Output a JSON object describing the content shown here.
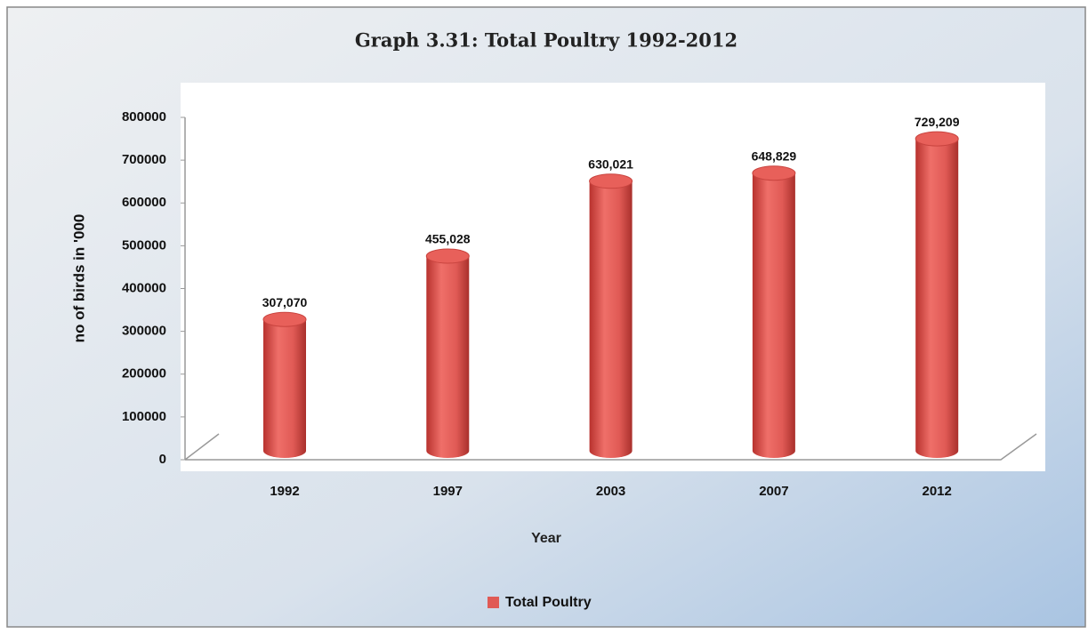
{
  "chart_data": {
    "type": "bar",
    "title": "Graph 3.31:  Total Poultry 1992-2012",
    "x_label": "Year",
    "y_label": "no of birds in '000",
    "categories": [
      "1992",
      "1997",
      "2003",
      "2007",
      "2012"
    ],
    "series": [
      {
        "name": "Total Poultry",
        "color": "#e05a55",
        "values": [
          307070,
          455028,
          630021,
          648829,
          729209
        ],
        "value_labels": [
          "307,070",
          "455,028",
          "630,021",
          "648,829",
          "729,209"
        ]
      }
    ],
    "ylim": [
      0,
      800000
    ],
    "yticks": [
      0,
      100000,
      200000,
      300000,
      400000,
      500000,
      600000,
      700000,
      800000
    ],
    "grid": false
  }
}
